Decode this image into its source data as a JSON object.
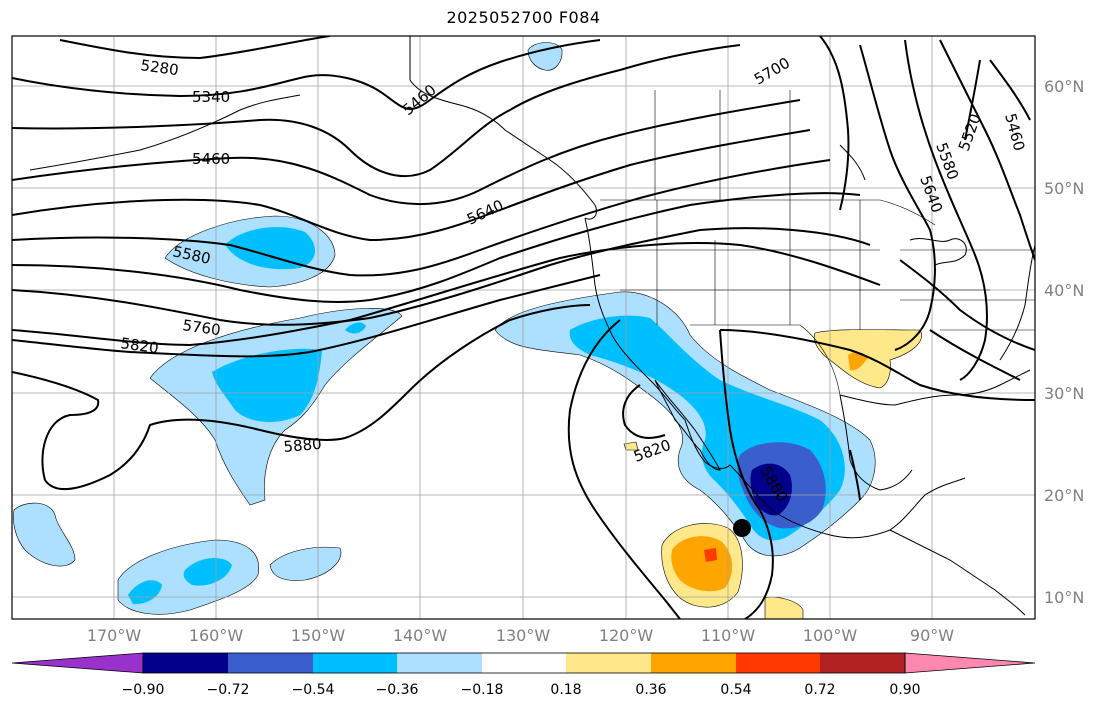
{
  "title": "2025052700 F084",
  "lat_labels": [
    "60°N",
    "50°N",
    "40°N",
    "30°N",
    "20°N",
    "10°N"
  ],
  "lon_labels": [
    "170°W",
    "160°W",
    "150°W",
    "140°W",
    "130°W",
    "120°W",
    "110°W",
    "100°W",
    "90°W"
  ],
  "colorbar": {
    "tick_labels": [
      "−0.90",
      "−0.72",
      "−0.54",
      "−0.36",
      "−0.18",
      "0.18",
      "0.36",
      "0.54",
      "0.72",
      "0.90"
    ],
    "colors": [
      "#9932CC",
      "#00008B",
      "#3A5FCD",
      "#00BFFF",
      "#ADE0FF",
      "#FFFFFF",
      "#FFE88A",
      "#FFA500",
      "#FF3A00",
      "#B22222",
      "#FF88B0"
    ]
  },
  "contours": {
    "labels": [
      "5280",
      "5340",
      "5460",
      "5580",
      "5760",
      "5820",
      "5880",
      "5460",
      "5640",
      "5700",
      "5520",
      "5460",
      "5580",
      "5640",
      "5820",
      "5880"
    ]
  },
  "colors": {
    "land_outline": "#000000",
    "grid": "#a0a0a0",
    "contour": "#000000",
    "lat_lon_label": "#808080"
  }
}
